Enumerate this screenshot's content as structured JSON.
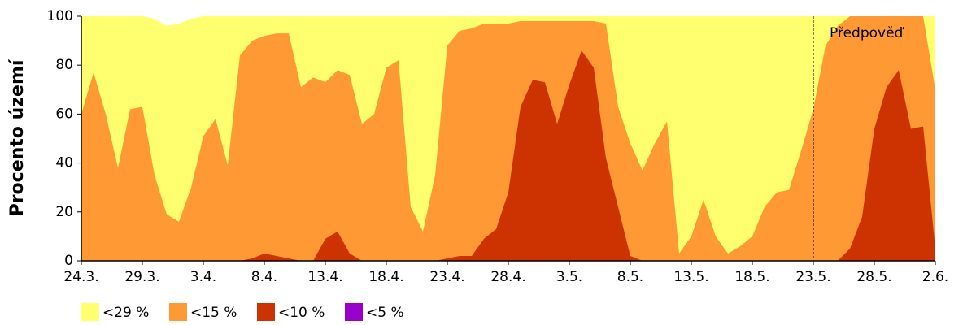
{
  "chart_data": {
    "type": "area",
    "ylabel": "Procento území",
    "categories": [
      "24.3.",
      null,
      null,
      null,
      null,
      "29.3.",
      null,
      null,
      null,
      null,
      "3.4.",
      null,
      null,
      null,
      null,
      "8.4.",
      null,
      null,
      null,
      null,
      "13.4.",
      null,
      null,
      null,
      null,
      "18.4.",
      null,
      null,
      null,
      null,
      "23.4.",
      null,
      null,
      null,
      null,
      "28.4.",
      null,
      null,
      null,
      null,
      "3.5.",
      null,
      null,
      null,
      null,
      "8.5.",
      null,
      null,
      null,
      null,
      "13.5.",
      null,
      null,
      null,
      null,
      "18.5.",
      null,
      null,
      null,
      null,
      "23.5.",
      null,
      null,
      null,
      null,
      "28.5.",
      null,
      null,
      null,
      null,
      "2.6."
    ],
    "series": [
      {
        "name": "<29 %",
        "color": "#ffff70",
        "values": [
          100,
          100,
          100,
          100,
          100,
          100,
          99,
          96,
          97,
          99,
          100,
          100,
          100,
          100,
          100,
          100,
          100,
          100,
          100,
          100,
          100,
          100,
          100,
          100,
          100,
          100,
          100,
          100,
          100,
          100,
          100,
          100,
          100,
          100,
          100,
          100,
          100,
          100,
          100,
          100,
          100,
          100,
          100,
          100,
          100,
          100,
          100,
          100,
          100,
          100,
          100,
          100,
          100,
          100,
          100,
          100,
          100,
          100,
          100,
          100,
          100,
          100,
          100,
          100,
          100,
          100,
          100,
          100,
          100,
          100,
          100
        ]
      },
      {
        "name": "<15 %",
        "color": "#ff9933",
        "values": [
          60,
          77,
          60,
          38,
          62,
          63,
          35,
          19,
          16,
          30,
          51,
          58,
          39,
          84,
          90,
          92,
          93,
          93,
          71,
          75,
          73,
          78,
          76,
          56,
          60,
          79,
          82,
          22,
          12,
          35,
          88,
          94,
          95,
          97,
          97,
          97,
          98,
          98,
          98,
          98,
          98,
          98,
          98,
          97,
          63,
          48,
          37,
          48,
          57,
          3,
          10,
          25,
          10,
          3,
          6,
          10,
          22,
          28,
          29,
          45,
          62,
          88,
          96,
          100,
          100,
          100,
          100,
          100,
          100,
          100,
          70
        ]
      },
      {
        "name": "<10 %",
        "color": "#cc3300",
        "values": [
          0,
          0,
          0,
          0,
          0,
          0,
          0,
          0,
          0,
          0,
          0,
          0,
          0,
          0,
          1,
          3,
          2,
          1,
          0,
          0,
          9,
          12,
          3,
          0,
          0,
          0,
          0,
          0,
          0,
          0,
          1,
          2,
          2,
          9,
          13,
          28,
          63,
          74,
          73,
          56,
          72,
          86,
          79,
          42,
          22,
          2,
          0,
          0,
          0,
          0,
          0,
          0,
          0,
          0,
          0,
          0,
          0,
          0,
          0,
          0,
          0,
          0,
          0,
          5,
          18,
          54,
          71,
          78,
          54,
          55,
          5
        ]
      },
      {
        "name": "<5 %",
        "color": "#9900cc",
        "values": [
          0,
          0,
          0,
          0,
          0,
          0,
          0,
          0,
          0,
          0,
          0,
          0,
          0,
          0,
          0,
          0,
          0,
          0,
          0,
          0,
          0,
          0,
          0,
          0,
          0,
          0,
          0,
          0,
          0,
          0,
          0,
          0,
          0,
          0,
          0,
          0,
          0,
          0,
          0,
          0,
          0,
          0,
          0,
          0,
          0,
          0,
          0,
          0,
          0,
          0,
          0,
          0,
          0,
          0,
          0,
          0,
          0,
          0,
          0,
          0,
          0,
          0,
          0,
          0,
          0,
          0,
          0,
          0,
          0,
          0,
          0
        ]
      }
    ],
    "ylim": [
      0,
      100
    ],
    "yticks": [
      0,
      20,
      40,
      60,
      80,
      100
    ],
    "annotation": {
      "text": "Předpověď",
      "x": "23.5."
    }
  }
}
